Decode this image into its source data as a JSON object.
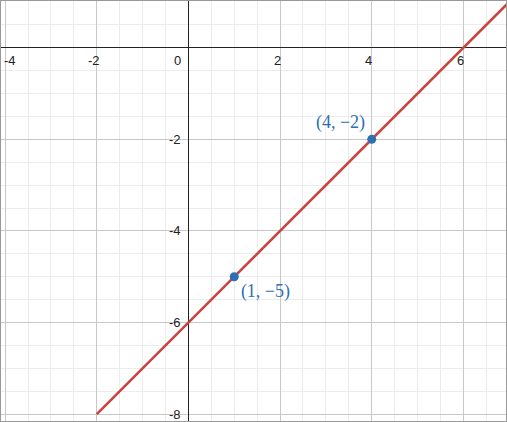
{
  "chart_data": {
    "type": "line",
    "xlim": [
      -4.09,
      6.93
    ],
    "ylim": [
      -8.15,
      1.02
    ],
    "xticks": [
      -4,
      -2,
      0,
      2,
      4,
      6
    ],
    "yticks": [
      -8,
      -6,
      -4,
      -2
    ],
    "grid": true,
    "series": [
      {
        "type": "line",
        "color": "#c74440",
        "x": [
          -2,
          1,
          4,
          6,
          7
        ],
        "values": [
          -8,
          -5,
          -2,
          0,
          1
        ]
      },
      {
        "type": "scatter",
        "color": "#2d70b3",
        "marker": "circle",
        "x": [
          1,
          4
        ],
        "values": [
          -5,
          -2
        ],
        "data_labels": true,
        "value_labels": [
          "(1, −5)",
          "(4, −2)"
        ]
      }
    ]
  }
}
